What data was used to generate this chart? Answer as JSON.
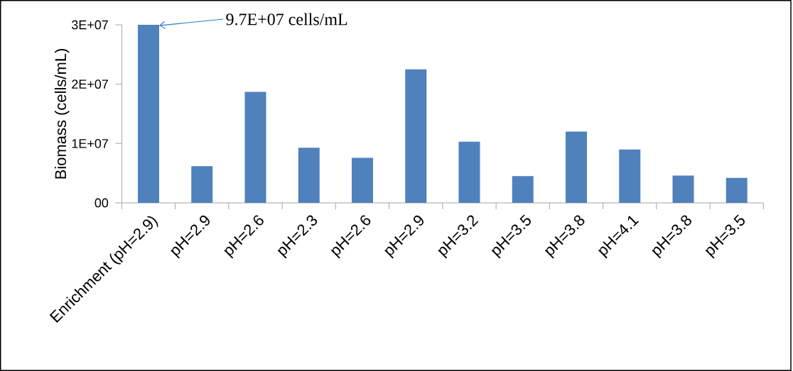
{
  "chart_data": {
    "type": "bar",
    "ylabel": "Biomass (cells/mL)",
    "categories": [
      "Enrichment (pH=2.9)",
      "pH=2.9",
      "pH=2.6",
      "pH=2.3",
      "pH=2.6",
      "pH=2.9",
      "pH=3.2",
      "pH=3.5",
      "pH=3.8",
      "pH=4.1",
      "pH=3.8",
      "pH=3.5"
    ],
    "values": [
      30000000,
      6200000,
      18700000,
      9300000,
      7600000,
      22500000,
      10300000,
      4500000,
      12000000,
      9000000,
      4600000,
      4200000
    ],
    "color": "#4f81bd",
    "ylim": [
      0,
      30000000
    ],
    "yticks": [
      {
        "value": 0,
        "label": "00"
      },
      {
        "value": 10000000,
        "label": "1E+07"
      },
      {
        "value": 20000000,
        "label": "2E+07"
      },
      {
        "value": 30000000,
        "label": "3E+07"
      }
    ],
    "annotations": [
      "9.7E+07 cells/mL"
    ]
  }
}
